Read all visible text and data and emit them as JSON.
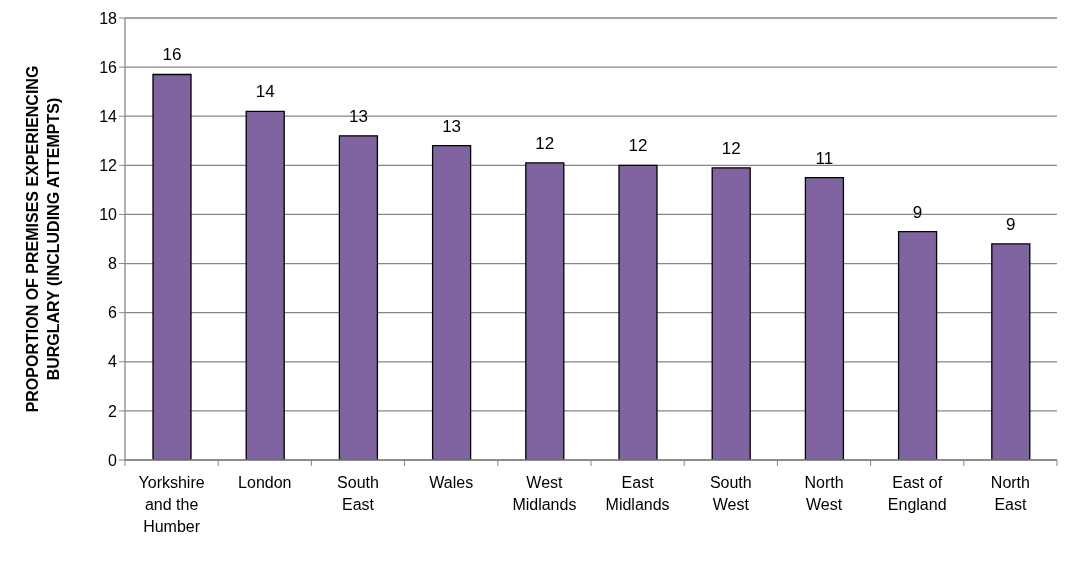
{
  "chart_data": {
    "type": "bar",
    "ylabel": "PROPORTION OF PREMISES EXPERIENCING BURGLARY (INCLUDING ATTEMPTS)",
    "categories": [
      "Yorkshire and the Humber",
      "London",
      "South East",
      "Wales",
      "West Midlands",
      "East Midlands",
      "South West",
      "North West",
      "East of England",
      "North East"
    ],
    "values": [
      15.7,
      14.2,
      13.2,
      12.8,
      12.1,
      12.0,
      11.9,
      11.5,
      9.3,
      8.8
    ],
    "value_labels": [
      "16",
      "14",
      "13",
      "13",
      "12",
      "12",
      "12",
      "11",
      "9",
      "9"
    ],
    "color": "#8064a2",
    "ylim": [
      0,
      18
    ],
    "yticks": [
      0,
      2,
      4,
      6,
      8,
      10,
      12,
      14,
      16,
      18
    ],
    "grid": "y"
  }
}
